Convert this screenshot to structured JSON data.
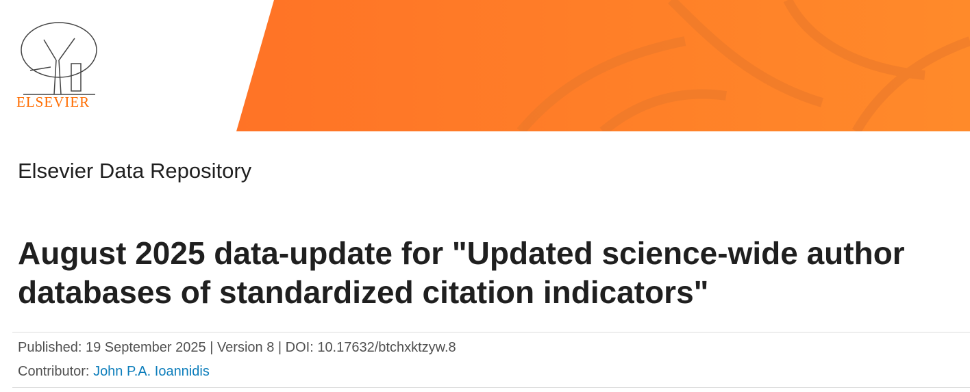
{
  "header": {
    "logo_text": "ELSEVIER",
    "brand_color": "#ff6c00",
    "banner_color": "#ff7a2a"
  },
  "repository_title": "Elsevier Data Repository",
  "dataset": {
    "title": "August 2025 data-update for \"Updated science-wide author databases of standardized citation indicators\"",
    "published_line": "Published: 19 September 2025 | Version 8 | DOI: 10.17632/btchxktzyw.8",
    "contributor_label": "Contributor: ",
    "contributor_name": "John P.A. Ioannidis"
  }
}
